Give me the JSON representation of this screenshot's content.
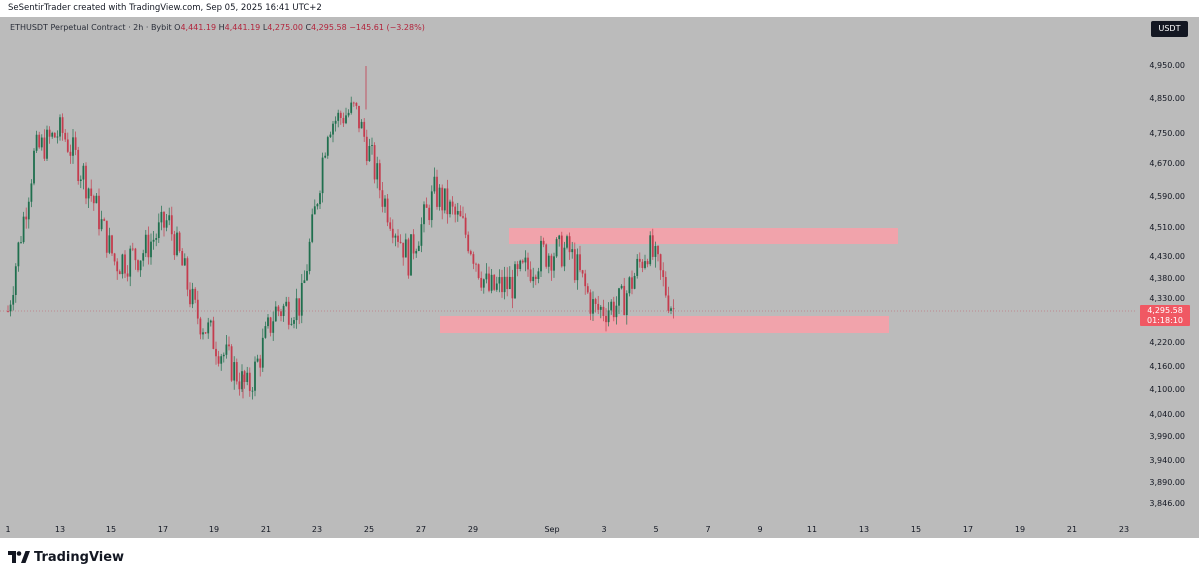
{
  "credit": "SeSentirTrader created with TradingView.com, Sep 05, 2025 16:41 UTC+2",
  "symbol": "ETHUSDT Perpetual Contract · 2h · Bybit",
  "ohlc": {
    "o_label": "O",
    "o": "4,441.19",
    "h_label": "H",
    "h": "4,441.19",
    "l_label": "L",
    "l": "4,275.00",
    "c_label": "C",
    "c": "4,295.58",
    "change": "−145.61 (−3.28%)"
  },
  "currency_button": "USDT",
  "last_price": "4,295.58",
  "countdown": "01:18:10",
  "brand": "TradingView",
  "colors": {
    "up": "#1f6f4e",
    "down": "#c43c4e",
    "zone": "#f1a3ab",
    "background": "#bbbbbb",
    "price_tag": "#f05863"
  },
  "chart_data": {
    "type": "candlestick",
    "timeframe": "2h",
    "y_axis_ticks": [
      "4,950.00",
      "4,850.00",
      "4,750.00",
      "4,670.00",
      "4,590.00",
      "4,510.00",
      "4,430.00",
      "4,380.00",
      "4,330.00",
      "4,220.00",
      "4,160.00",
      "4,100.00",
      "4,040.00",
      "3,990.00",
      "3,940.00",
      "3,890.00",
      "3,846.00"
    ],
    "x_axis_ticks": [
      "1",
      "13",
      "15",
      "17",
      "19",
      "21",
      "23",
      "25",
      "27",
      "29",
      "Sep",
      "3",
      "5",
      "7",
      "9",
      "11",
      "13",
      "15",
      "17",
      "19",
      "21",
      "23"
    ],
    "price_path": [
      {
        "x": "Aug 11",
        "y": 4300
      },
      {
        "x": "Aug 12",
        "y": 4700
      },
      {
        "x": "Aug 13",
        "y": 4760
      },
      {
        "x": "Aug 14",
        "y": 4620
      },
      {
        "x": "Aug 15",
        "y": 4420
      },
      {
        "x": "Aug 16",
        "y": 4440
      },
      {
        "x": "Aug 17",
        "y": 4530
      },
      {
        "x": "Aug 18",
        "y": 4300
      },
      {
        "x": "Aug 19",
        "y": 4200
      },
      {
        "x": "Aug 20",
        "y": 4100
      },
      {
        "x": "Aug 21",
        "y": 4300
      },
      {
        "x": "Aug 22",
        "y": 4320
      },
      {
        "x": "Aug 23",
        "y": 4780
      },
      {
        "x": "Aug 24",
        "y": 4820
      },
      {
        "x": "Aug 25",
        "y": 4600
      },
      {
        "x": "Aug 26",
        "y": 4430
      },
      {
        "x": "Aug 27",
        "y": 4600
      },
      {
        "x": "Aug 28",
        "y": 4520
      },
      {
        "x": "Aug 29",
        "y": 4350
      },
      {
        "x": "Aug 30",
        "y": 4370
      },
      {
        "x": "Aug 31",
        "y": 4440
      },
      {
        "x": "Sep 1",
        "y": 4450
      },
      {
        "x": "Sep 2",
        "y": 4300
      },
      {
        "x": "Sep 3",
        "y": 4320
      },
      {
        "x": "Sep 4",
        "y": 4460
      },
      {
        "x": "Sep 5",
        "y": 4295.58
      }
    ],
    "extremes": {
      "high": 4950,
      "low": 4080
    },
    "resistance_zone": [
      4470,
      4510
    ],
    "support_zone": [
      4245,
      4275
    ],
    "last_price": 4295.58
  }
}
